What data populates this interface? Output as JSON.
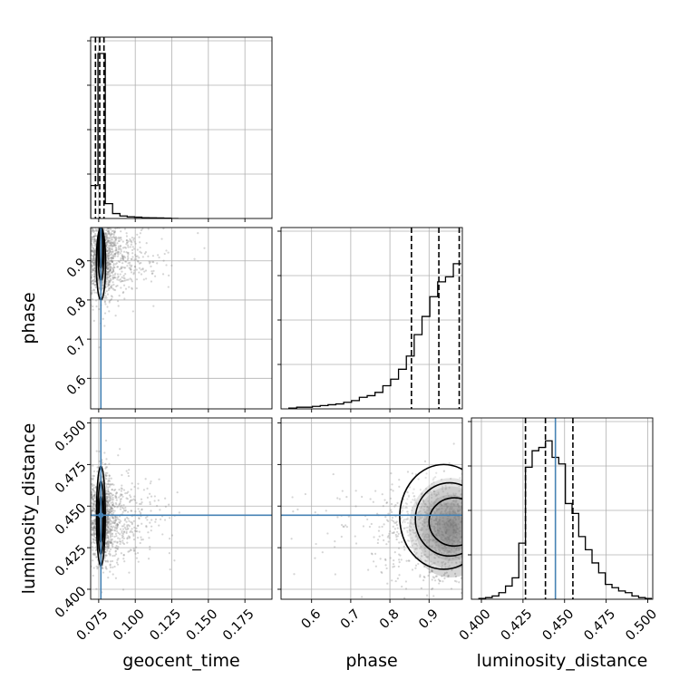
{
  "colors": {
    "truth": "#4682b4",
    "hist": "#000000",
    "grid": "#b0b0b0",
    "scatter": "#888888"
  },
  "chart_data": {
    "type": "corner",
    "parameters": [
      "geocent_time",
      "phase",
      "luminosity_distance"
    ],
    "truths": {
      "geocent_time": 0.0765,
      "phase": null,
      "luminosity_distance": 0.4445
    },
    "ranges": {
      "geocent_time": [
        0.0695,
        0.1935
      ],
      "phase": [
        0.522,
        0.985
      ],
      "luminosity_distance": [
        0.394,
        0.503
      ]
    },
    "ticks": {
      "geocent_time": [
        {
          "v": 0.075,
          "l": "0.075"
        },
        {
          "v": 0.1,
          "l": "0.100"
        },
        {
          "v": 0.125,
          "l": "0.125"
        },
        {
          "v": 0.15,
          "l": "0.150"
        },
        {
          "v": 0.175,
          "l": "0.175"
        }
      ],
      "phase": [
        {
          "v": 0.6,
          "l": "0.6"
        },
        {
          "v": 0.7,
          "l": "0.7"
        },
        {
          "v": 0.8,
          "l": "0.8"
        },
        {
          "v": 0.9,
          "l": "0.9"
        }
      ],
      "luminosity_distance": [
        {
          "v": 0.4,
          "l": "0.400"
        },
        {
          "v": 0.425,
          "l": "0.425"
        },
        {
          "v": 0.45,
          "l": "0.450"
        },
        {
          "v": 0.475,
          "l": "0.475"
        },
        {
          "v": 0.5,
          "l": "0.500"
        }
      ]
    },
    "quantiles": {
      "geocent_time": [
        0.0728,
        0.0757,
        0.0786
      ],
      "phase": [
        0.855,
        0.925,
        0.977
      ],
      "luminosity_distance": [
        0.4265,
        0.4385,
        0.455
      ]
    },
    "histograms": {
      "geocent_time": {
        "edges": [
          0.0695,
          0.0745,
          0.0795,
          0.0845,
          0.0895,
          0.0945,
          0.0995,
          0.1045,
          0.1095,
          0.1145,
          0.1195,
          0.1245,
          0.1295
        ],
        "counts": [
          0.2,
          1.0,
          0.09,
          0.03,
          0.015,
          0.01,
          0.008,
          0.005,
          0.004,
          0.003,
          0.002,
          0.0
        ]
      },
      "phase": {
        "edges": [
          0.542,
          0.562,
          0.582,
          0.602,
          0.622,
          0.642,
          0.662,
          0.682,
          0.702,
          0.722,
          0.742,
          0.762,
          0.782,
          0.802,
          0.822,
          0.842,
          0.862,
          0.882,
          0.902,
          0.922,
          0.942,
          0.962,
          0.982
        ],
        "counts": [
          0.005,
          0.01,
          0.01,
          0.015,
          0.02,
          0.025,
          0.03,
          0.04,
          0.05,
          0.07,
          0.08,
          0.1,
          0.14,
          0.18,
          0.24,
          0.32,
          0.45,
          0.56,
          0.68,
          0.77,
          0.8,
          0.88
        ]
      },
      "luminosity_distance": {
        "edges": [
          0.3985,
          0.4025,
          0.4065,
          0.4105,
          0.4145,
          0.4185,
          0.4225,
          0.4265,
          0.4305,
          0.4345,
          0.4385,
          0.4425,
          0.4465,
          0.4505,
          0.4545,
          0.4585,
          0.4625,
          0.4665,
          0.4705,
          0.4745,
          0.4785,
          0.4825,
          0.4865,
          0.4905,
          0.4945,
          0.4985,
          0.5025
        ],
        "counts": [
          0.005,
          0.01,
          0.02,
          0.04,
          0.08,
          0.13,
          0.34,
          0.8,
          0.9,
          0.92,
          0.96,
          0.86,
          0.82,
          0.58,
          0.52,
          0.38,
          0.3,
          0.22,
          0.16,
          0.09,
          0.07,
          0.05,
          0.04,
          0.02,
          0.01,
          0.005
        ]
      }
    },
    "joint": {
      "phase_vs_geocent_time": {
        "center": [
          0.0765,
          0.91
        ],
        "spread": [
          0.003,
          0.04
        ],
        "contours": [
          {
            "x": [
              0.0734,
              0.0797
            ],
            "y": [
              0.8,
              0.985
            ]
          },
          {
            "x": [
              0.0746,
              0.0785
            ],
            "y": [
              0.85,
              0.985
            ]
          },
          {
            "x": [
              0.0753,
              0.0777
            ],
            "y": [
              0.88,
              0.985
            ]
          }
        ]
      },
      "luminosity_distance_vs_geocent_time": {
        "center": [
          0.0765,
          0.442
        ],
        "spread": [
          0.003,
          0.01
        ],
        "contours": [
          {
            "x": [
              0.0735,
              0.0795
            ],
            "y": [
              0.414,
              0.474
            ]
          },
          {
            "x": [
              0.0744,
              0.0786
            ],
            "y": [
              0.421,
              0.465
            ]
          },
          {
            "x": [
              0.0752,
              0.0778
            ],
            "y": [
              0.428,
              0.456
            ]
          }
        ]
      },
      "luminosity_distance_vs_phase": {
        "center": [
          0.955,
          0.437
        ],
        "spread": [
          0.06,
          0.012
        ],
        "contours": [
          {
            "x": [
              0.825,
              1.05
            ],
            "y": [
              0.412,
              0.475
            ]
          },
          {
            "x": [
              0.865,
              1.04
            ],
            "y": [
              0.42,
              0.464
            ]
          },
          {
            "x": [
              0.9,
              1.03
            ],
            "y": [
              0.426,
              0.455
            ]
          }
        ]
      }
    }
  }
}
